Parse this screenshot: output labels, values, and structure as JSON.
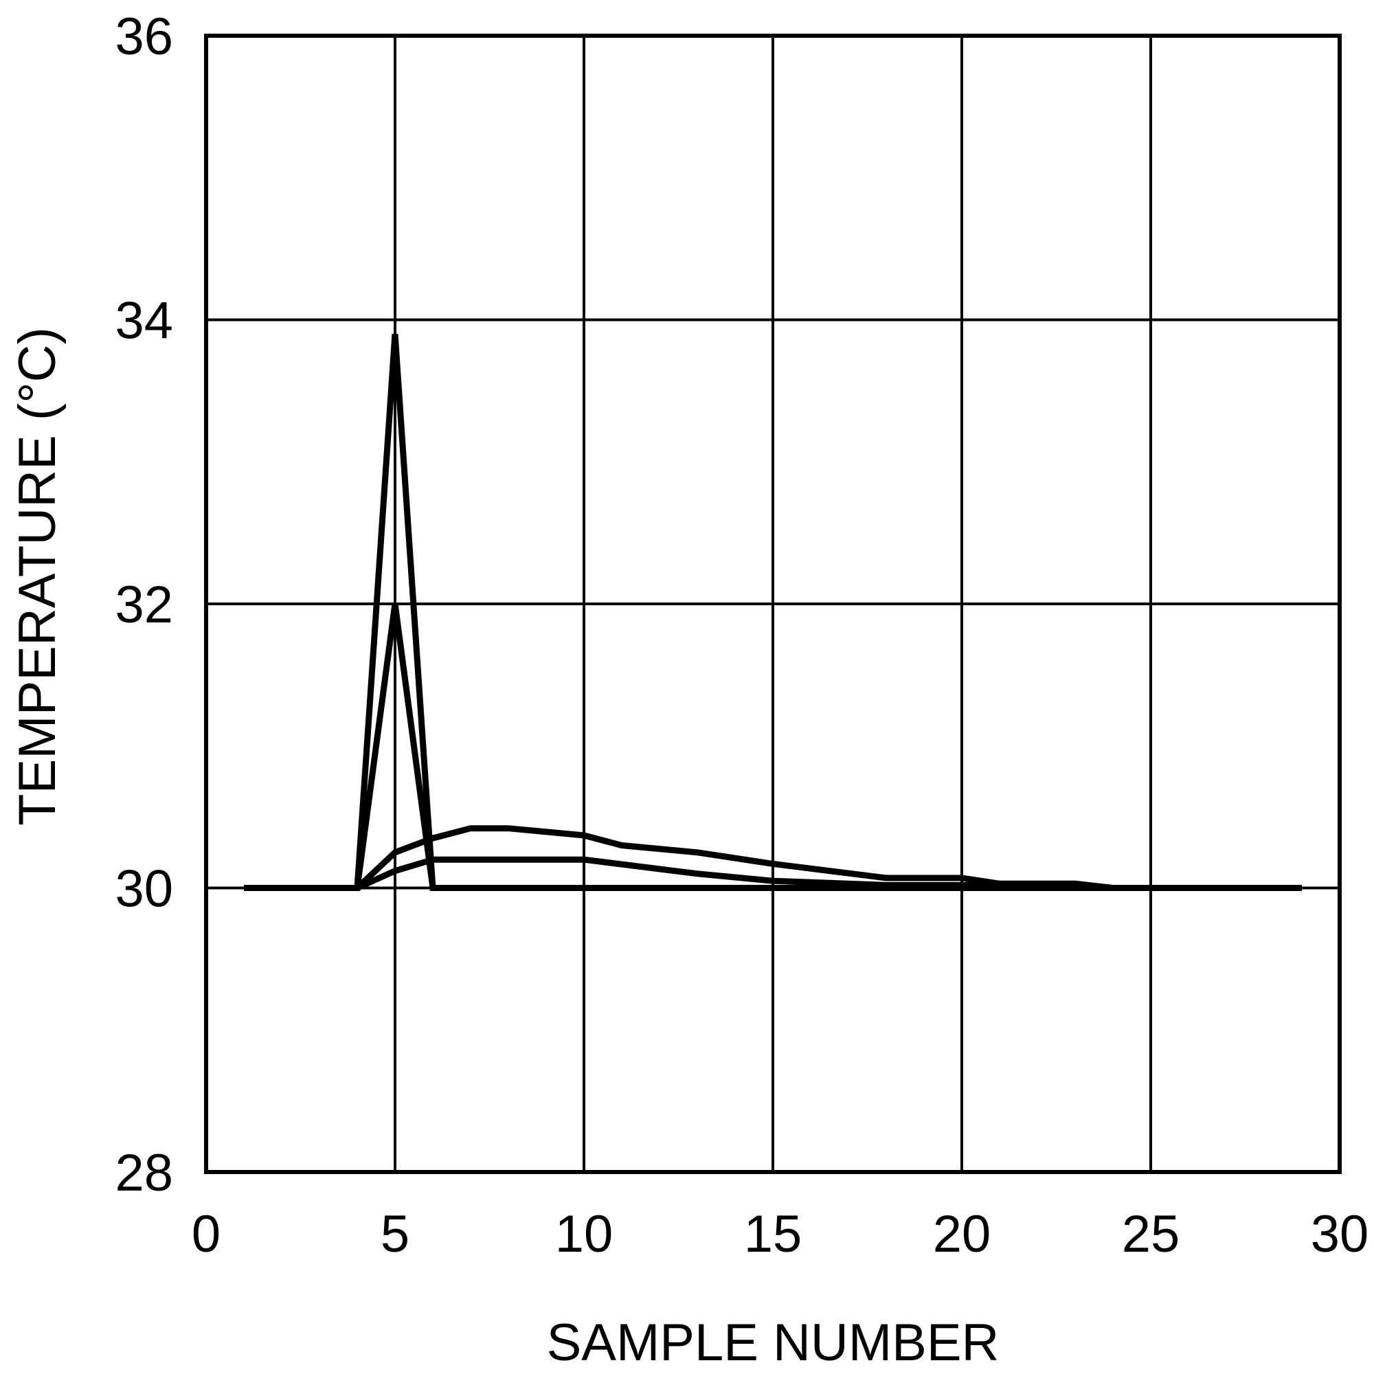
{
  "chart_data": {
    "type": "line",
    "title": "",
    "xlabel": "SAMPLE NUMBER",
    "ylabel": "TEMPERATURE (°C)",
    "xlim": [
      0,
      30
    ],
    "ylim": [
      28,
      36
    ],
    "xticks": [
      0,
      5,
      10,
      15,
      20,
      25,
      30
    ],
    "yticks": [
      28,
      30,
      32,
      34,
      36
    ],
    "grid": true,
    "legend": "none",
    "series": [
      {
        "x": [
          1,
          4,
          5,
          6,
          29
        ],
        "y": [
          30,
          30,
          33.9,
          30,
          30
        ]
      },
      {
        "x": [
          1,
          4,
          5,
          6,
          29
        ],
        "y": [
          30,
          30,
          32.0,
          30,
          30
        ]
      },
      {
        "x": [
          1,
          4,
          5,
          6,
          7,
          8,
          10,
          11,
          13,
          15,
          18,
          20,
          21,
          23,
          24,
          29
        ],
        "y": [
          30,
          30,
          30.25,
          30.35,
          30.42,
          30.42,
          30.37,
          30.3,
          30.25,
          30.17,
          30.07,
          30.07,
          30.03,
          30.03,
          30,
          30
        ]
      },
      {
        "x": [
          1,
          4,
          5,
          6,
          7,
          10,
          13,
          15,
          18,
          20,
          23,
          24,
          29
        ],
        "y": [
          30,
          30,
          30.12,
          30.2,
          30.2,
          30.2,
          30.1,
          30.05,
          30.02,
          30.02,
          30.01,
          30,
          30
        ]
      }
    ]
  }
}
